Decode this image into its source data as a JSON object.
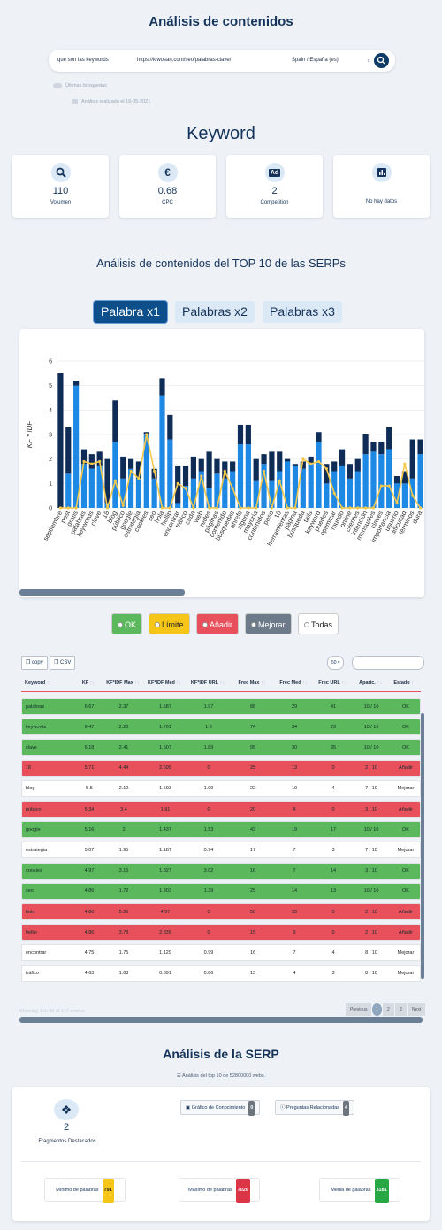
{
  "header": {
    "title": "Análisis de contenidos"
  },
  "search": {
    "query": "que son las keywords",
    "url": "https://kiwosan.com/seo/palabras-clave/",
    "country": "Spain / España (es)",
    "history_toggle": "Últimas búsquedas",
    "analysis_date": "Análisis realizado el 16-05-2021"
  },
  "keyword": {
    "title": "Keyword",
    "cards": [
      {
        "value": 110,
        "label": "Volumen"
      },
      {
        "icon_text": "€",
        "value": 0.68,
        "label": "CPC"
      },
      {
        "icon_text": "Ad",
        "value": 2,
        "label": "Competition"
      },
      {
        "label": "No hay datos"
      }
    ]
  },
  "content": {
    "title": "Análisis de contenidos del TOP 10 de las SERPs",
    "tabs": [
      "Palabra x1",
      "Palabras x2",
      "Palabras x3"
    ],
    "active_tab": 0
  },
  "chart_data": {
    "type": "bar",
    "stacked": true,
    "y_label": "KF * IDF",
    "categories": [
      "septiembre",
      "post",
      "gratis",
      "palabras",
      "keywords",
      "clave",
      "18",
      "blog",
      "público",
      "google",
      "estrategia",
      "cookies",
      "seo",
      "hola",
      "hellip",
      "encontrar",
      "tráfico",
      "cada",
      "web",
      "redes",
      "páginas",
      "contenido",
      "búsquedas",
      "ahrefs",
      "alguna",
      "mayoría",
      "contenidos",
      "paso",
      "10",
      "herramientas",
      "página",
      "búsqueda",
      "tails",
      "keyword",
      "puedes",
      "optimizar",
      "mundo",
      "online",
      "clientes",
      "intención",
      "mensuales",
      "claves",
      "importancia",
      "usuario",
      "dificultad",
      "términos",
      "dura"
    ],
    "series": [
      {
        "color": "#1e88e5",
        "values": [
          0,
          1.4,
          5.0,
          1.8,
          1.6,
          1.7,
          0.2,
          2.7,
          1.2,
          1.6,
          1.2,
          3.0,
          1.2,
          4.6,
          2.8,
          0.2,
          0.9,
          1.2,
          1.5,
          0.8,
          1.4,
          1.2,
          1.5,
          2.6,
          2.6,
          1.1,
          1.8,
          1.1,
          1.5,
          1.9,
          1.7,
          1.6,
          1.8,
          2.7,
          1.0,
          1.5,
          1.7,
          1.2,
          1.5,
          2.2,
          2.3,
          2.2,
          2.4,
          1.0,
          1.0,
          1.2,
          2.2
        ]
      },
      {
        "color": "#0f2c57",
        "values": [
          5.5,
          1.9,
          0.2,
          0.6,
          0.6,
          0.6,
          1.8,
          1.7,
          0.9,
          0.4,
          0.7,
          0.1,
          0.4,
          0.7,
          1.0,
          1.5,
          0.8,
          0.9,
          0.5,
          1.5,
          0.6,
          0.7,
          0.4,
          0.8,
          0.8,
          0.9,
          0.4,
          1.2,
          0.8,
          0.1,
          0.1,
          0.3,
          0.3,
          0.4,
          0.8,
          0.4,
          0.7,
          0.6,
          0.5,
          0.8,
          0.4,
          0.5,
          0.9,
          0.3,
          0.5,
          1.6,
          0.6
        ]
      },
      {
        "type": "line",
        "color": "#f2c94c",
        "values": [
          0,
          0,
          0,
          1.9,
          1.8,
          1.9,
          0,
          1.1,
          0.1,
          1.5,
          1.2,
          3.0,
          1.5,
          0,
          0,
          1.0,
          0.8,
          0,
          1.3,
          0,
          0,
          1.5,
          0.8,
          0,
          0,
          0,
          1.5,
          0,
          1.1,
          0,
          0,
          2.0,
          1.8,
          1.9,
          1.6,
          0.6,
          0,
          0,
          0,
          0,
          0,
          0.9,
          0.9,
          0.2,
          1.8,
          0.5,
          0
        ]
      }
    ],
    "ylim": [
      0,
      6
    ],
    "yticks": [
      0,
      1,
      2,
      3,
      4,
      5,
      6
    ],
    "grid": true
  },
  "filters": [
    {
      "label": "OK",
      "color": "#5cb85c"
    },
    {
      "label": "Límite",
      "color": "#f5c518"
    },
    {
      "label": "Añadir",
      "color": "#e8505b"
    },
    {
      "label": "Mejorar",
      "color": "#6c7a89"
    },
    {
      "label": "Todas",
      "color": "#ffffff"
    }
  ],
  "table": {
    "buttons": [
      "copy",
      "CSV"
    ],
    "page_length": 50,
    "columns": [
      "Keyword",
      "KF",
      "KF*IDF Max",
      "KF*IDF Med",
      "KF*IDF URL",
      "Frec Max",
      "Frec Med",
      "Frec URL",
      "Aparic.",
      "Estado"
    ],
    "rows": [
      [
        "palabras",
        6.67,
        2.37,
        1.587,
        1.97,
        88,
        29,
        41,
        "10 / 10",
        "OK"
      ],
      [
        "keywords",
        6.47,
        2.28,
        1.701,
        1.8,
        74,
        34,
        29,
        "10 / 10",
        "OK"
      ],
      [
        "clave",
        6.18,
        2.41,
        1.507,
        1.89,
        95,
        30,
        35,
        "10 / 10",
        "OK"
      ],
      [
        "18",
        5.71,
        4.44,
        2.695,
        0,
        25,
        13,
        0,
        "2 / 10",
        "Añadir"
      ],
      [
        "blog",
        5.5,
        2.12,
        1.503,
        1.09,
        22,
        10,
        4,
        "7 / 10",
        "Mejorar"
      ],
      [
        "público",
        5.34,
        3.4,
        1.91,
        0,
        20,
        8,
        0,
        "3 / 10",
        "Añadir"
      ],
      [
        "google",
        5.16,
        2,
        1.437,
        1.53,
        43,
        19,
        17,
        "10 / 10",
        "OK"
      ],
      [
        "estrategia",
        5.07,
        1.95,
        1.187,
        0.94,
        17,
        7,
        3,
        "7 / 10",
        "Mejorar"
      ],
      [
        "cookies",
        4.97,
        3.16,
        1.827,
        3.02,
        16,
        7,
        14,
        "3 / 10",
        "OK"
      ],
      [
        "seo",
        4.86,
        1.72,
        1.303,
        1.39,
        25,
        14,
        13,
        "10 / 10",
        "OK"
      ],
      [
        "hola",
        4.86,
        5.36,
        4.57,
        0,
        50,
        33,
        0,
        "2 / 10",
        "Añadir"
      ],
      [
        "hellip",
        4.86,
        3.78,
        2.835,
        0,
        15,
        9,
        0,
        "2 / 10",
        "Añadir"
      ],
      [
        "encontrar",
        4.75,
        1.75,
        1.129,
        0.99,
        16,
        7,
        4,
        "8 / 10",
        "Mejorar"
      ],
      [
        "tráfico",
        4.63,
        1.63,
        0.891,
        0.86,
        13,
        4,
        3,
        "8 / 10",
        "Mejorar"
      ]
    ],
    "info": "Showing 1 to 50 of 117 entries",
    "pagination": [
      "Previous",
      1,
      2,
      3,
      "Next"
    ],
    "current_page": 1
  },
  "serp": {
    "title": "Análisis de la SERP",
    "subtitle": "Análisis del top 10 de 52800000 webs.",
    "featured": {
      "value": 2,
      "label": "Fragmentos Destacados"
    },
    "knowledge": {
      "label": "Gráfico de Conocimiento",
      "count": 0
    },
    "questions": {
      "label": "Preguntas Relacionadas",
      "count": 4
    },
    "words": [
      {
        "label": "Mínimo de palabras",
        "value": 791,
        "color": "#f5c518"
      },
      {
        "label": "Máximo de palabras",
        "value": 7026,
        "color": "#dc3545"
      },
      {
        "label": "Media de palabras",
        "value": 3181,
        "color": "#28a745"
      }
    ]
  }
}
